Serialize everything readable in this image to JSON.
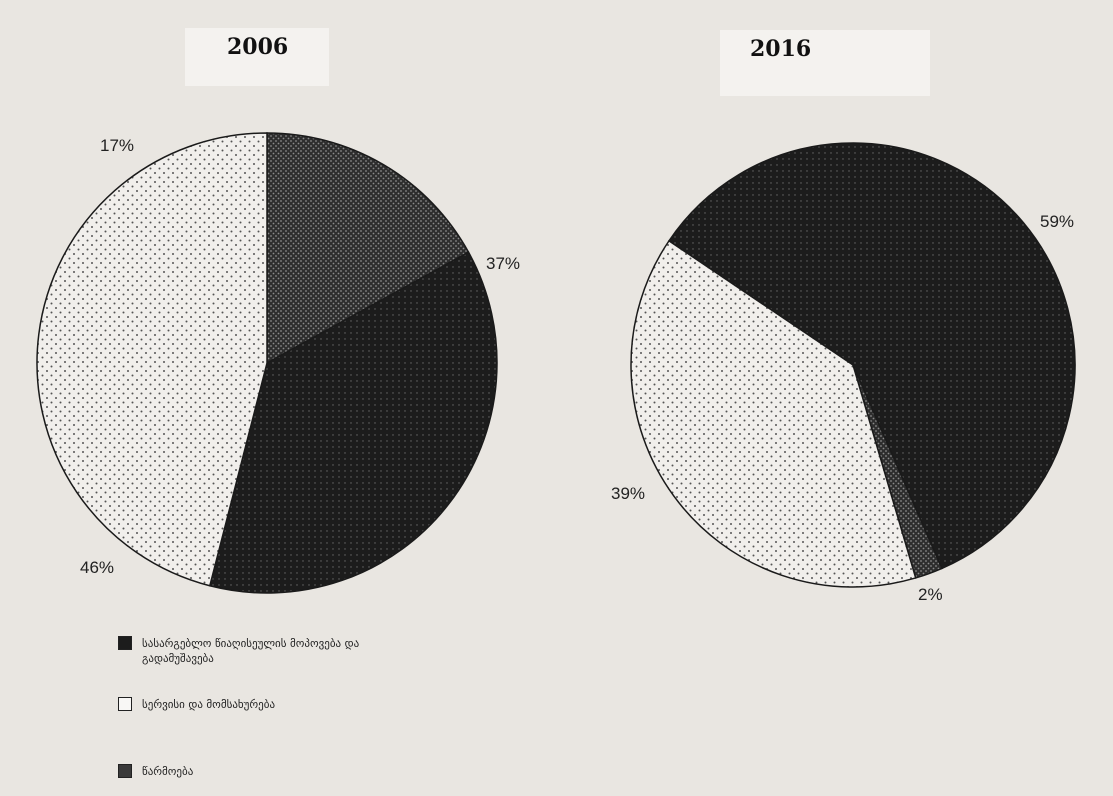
{
  "chart_data": [
    {
      "type": "pie",
      "title": "2006",
      "slices": [
        {
          "category": "წარმოება",
          "value": 17,
          "label": "17%"
        },
        {
          "category": "სასარგებლო წიაღისეულის მოპოვება და გადამუშავება",
          "value": 37,
          "label": "37%"
        },
        {
          "category": "სერვისი და მომსახურება",
          "value": 46,
          "label": "46%"
        }
      ]
    },
    {
      "type": "pie",
      "title": "2016",
      "slices": [
        {
          "category": "სასარგებლო წიაღისეულის მოპოვება და გადამუშავება",
          "value": 59,
          "label": "59%"
        },
        {
          "category": "წარმოება",
          "value": 2,
          "label": "2%"
        },
        {
          "category": "სერვისი და მომსახურება",
          "value": 39,
          "label": "39%"
        }
      ]
    }
  ],
  "legend": [
    {
      "label": "სასარგებლო წიაღისეულის მოპოვება და გადამუშავება",
      "pattern": "black"
    },
    {
      "label": "სერვისი და მომსახურება",
      "pattern": "light"
    },
    {
      "label": "წარმოება",
      "pattern": "dark"
    }
  ],
  "colors": {
    "black": "#1f1f1f",
    "dark": "#2a2a2a",
    "light": "#f1efec"
  }
}
